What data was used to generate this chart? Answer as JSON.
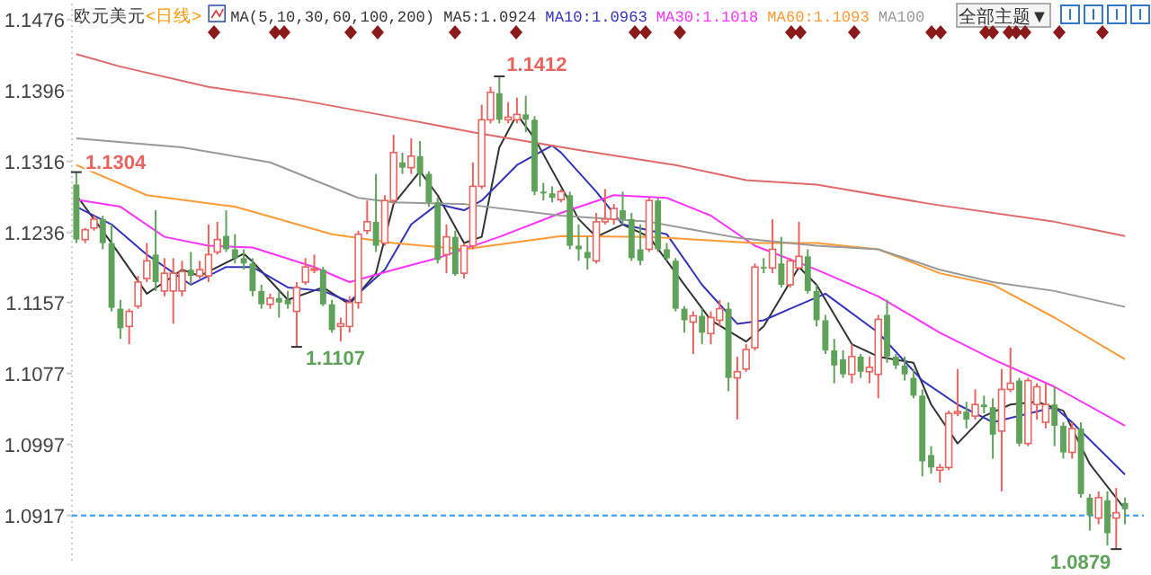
{
  "chart_data": {
    "type": "candlestick",
    "title": "欧元美元",
    "subtitle": "<日线>",
    "legend_title": "MA(5,10,30,60,100,200)",
    "legend": "top",
    "categories": [
      null,
      null,
      null,
      null,
      null,
      null,
      null,
      null,
      null,
      null,
      null,
      null,
      null,
      null,
      null,
      null,
      null,
      null,
      null,
      null,
      null,
      null,
      null,
      null,
      null,
      null,
      null,
      null,
      null,
      null,
      null,
      null,
      null,
      null,
      null,
      null,
      null,
      null,
      null,
      null,
      null,
      null,
      null,
      null,
      null,
      null,
      null,
      null,
      null,
      null,
      null,
      null,
      null,
      null,
      null,
      null,
      null,
      null,
      null,
      null,
      null,
      null,
      null,
      null,
      null,
      null,
      null,
      null,
      null,
      null,
      null,
      null,
      null,
      null,
      null,
      null,
      null,
      null,
      null,
      null,
      null,
      null,
      null,
      null,
      null,
      null,
      null,
      null,
      null,
      null,
      null,
      null,
      null,
      null,
      null,
      null,
      null,
      null,
      null,
      null,
      null,
      null,
      null,
      null,
      null,
      null,
      null,
      null,
      null,
      null,
      null,
      null,
      null,
      null,
      null,
      null,
      null,
      null,
      null,
      null
    ],
    "colors": [
      "#5fa25a",
      "#e8645f",
      "#e8645f",
      "#5fa25a",
      "#5fa25a",
      "#5fa25a",
      "#e8645f",
      "#e8645f",
      "#e8645f",
      "#5fa25a",
      "#e8645f",
      "#e8645f",
      "#e8645f",
      "#5fa25a",
      "#e8645f",
      "#e8645f",
      "#e8645f",
      "#5fa25a",
      "#5fa25a",
      "#5fa25a",
      "#5fa25a",
      "#5fa25a",
      "#e8645f",
      "#5fa25a",
      "#5fa25a",
      "#e8645f",
      "#e8645f",
      "#e8645f",
      "#5fa25a",
      "#5fa25a",
      "#e8645f",
      "#e8645f",
      "#e8645f",
      "#e8645f",
      "#5fa25a",
      "#e8645f",
      "#e8645f",
      "#5fa25a",
      "#e8645f",
      "#5fa25a",
      "#5fa25a",
      "#5fa25a",
      "#e8645f",
      "#5fa25a",
      "#e8645f",
      "#e8645f",
      "#e8645f",
      "#e8645f",
      "#5fa25a",
      "#e8645f",
      "#e8645f",
      "#5fa25a",
      "#5fa25a",
      "#5fa25a",
      "#5fa25a",
      "#e8645f",
      "#5fa25a",
      "#5fa25a",
      "#5fa25a",
      "#e8645f",
      "#e8645f",
      "#e8645f",
      "#5fa25a",
      "#5fa25a",
      "#5fa25a",
      "#e8645f",
      "#5fa25a",
      "#5fa25a",
      "#5fa25a",
      "#5fa25a",
      "#e8645f",
      "#5fa25a",
      "#e8645f",
      "#e8645f",
      "#5fa25a",
      "#e8645f",
      "#e8645f",
      "#e8645f",
      "#5fa25a",
      "#e8645f",
      "#5fa25a",
      "#e8645f",
      "#e8645f",
      "#5fa25a",
      "#5fa25a",
      "#5fa25a",
      "#5fa25a",
      "#5fa25a",
      "#e8645f",
      "#5fa25a",
      "#e8645f",
      "#e8645f",
      "#5fa25a",
      "#5fa25a",
      "#5fa25a",
      "#5fa25a",
      "#5fa25a",
      "#5fa25a",
      "#e8645f",
      "#e8645f",
      "#e8645f",
      "#5fa25a",
      "#e8645f",
      "#5fa25a",
      "#5fa25a",
      "#e8645f",
      "#e8645f",
      "#5fa25a",
      "#e8645f",
      "#e8645f",
      "#e8645f",
      "#5fa25a",
      "#5fa25a",
      "#e8645f",
      "#5fa25a",
      "#5fa25a",
      "#e8645f",
      "#5fa25a",
      "#e8645f",
      "#5fa25a"
    ],
    "ohlc": [
      [
        1.129,
        1.1304,
        1.1224,
        1.1228
      ],
      [
        1.1228,
        1.1241,
        1.1224,
        1.1239
      ],
      [
        1.1241,
        1.1255,
        1.1238,
        1.1251
      ],
      [
        1.1251,
        1.1255,
        1.1217,
        1.1224
      ],
      [
        1.1224,
        1.1245,
        1.1147,
        1.1151
      ],
      [
        1.115,
        1.116,
        1.1116,
        1.1128
      ],
      [
        1.113,
        1.115,
        1.111,
        1.1147
      ],
      [
        1.1153,
        1.1187,
        1.115,
        1.118
      ],
      [
        1.1184,
        1.1224,
        1.118,
        1.1204
      ],
      [
        1.1211,
        1.1261,
        1.117,
        1.118
      ],
      [
        1.117,
        1.1207,
        1.1164,
        1.119
      ],
      [
        1.117,
        1.1207,
        1.1133,
        1.119
      ],
      [
        1.117,
        1.1204,
        1.1164,
        1.1192
      ],
      [
        1.1194,
        1.1214,
        1.1177,
        1.1187
      ],
      [
        1.1187,
        1.1204,
        1.1184,
        1.1194
      ],
      [
        1.1187,
        1.1245,
        1.118,
        1.1211
      ],
      [
        1.1214,
        1.1248,
        1.1211,
        1.1228
      ],
      [
        1.1232,
        1.1261,
        1.1214,
        1.1217
      ],
      [
        1.1217,
        1.1234,
        1.1201,
        1.1207
      ],
      [
        1.1207,
        1.1217,
        1.1194,
        1.1201
      ],
      [
        1.1201,
        1.1207,
        1.1164,
        1.117
      ],
      [
        1.117,
        1.1177,
        1.115,
        1.1155
      ],
      [
        1.1155,
        1.1167,
        1.115,
        1.1162
      ],
      [
        1.1162,
        1.117,
        1.114,
        1.1157
      ],
      [
        1.116,
        1.117,
        1.115,
        1.1155
      ],
      [
        1.1147,
        1.118,
        1.1107,
        1.1174
      ],
      [
        1.118,
        1.1207,
        1.1177,
        1.1197
      ],
      [
        1.1194,
        1.1211,
        1.119,
        1.1195
      ],
      [
        1.1194,
        1.1197,
        1.1153,
        1.1155
      ],
      [
        1.1155,
        1.116,
        1.1123,
        1.1126
      ],
      [
        1.113,
        1.114,
        1.1113,
        1.1133
      ],
      [
        1.113,
        1.1164,
        1.1123,
        1.1157
      ],
      [
        1.1157,
        1.1238,
        1.115,
        1.1234
      ],
      [
        1.1238,
        1.1272,
        1.1234,
        1.1248
      ],
      [
        1.1248,
        1.1302,
        1.1214,
        1.1221
      ],
      [
        1.1224,
        1.1278,
        1.1221,
        1.1272
      ],
      [
        1.1272,
        1.1346,
        1.1268,
        1.1326
      ],
      [
        1.1315,
        1.1326,
        1.1302,
        1.1309
      ],
      [
        1.1309,
        1.1342,
        1.1302,
        1.1322
      ],
      [
        1.1322,
        1.1339,
        1.1288,
        1.1302
      ],
      [
        1.1302,
        1.1305,
        1.1265,
        1.127
      ],
      [
        1.127,
        1.1275,
        1.1201,
        1.1205
      ],
      [
        1.1211,
        1.1245,
        1.119,
        1.1231
      ],
      [
        1.1231,
        1.1238,
        1.1187,
        1.1189
      ],
      [
        1.119,
        1.1224,
        1.1184,
        1.1221
      ],
      [
        1.1221,
        1.1315,
        1.1217,
        1.1288
      ],
      [
        1.1288,
        1.138,
        1.1285,
        1.1363
      ],
      [
        1.1363,
        1.14,
        1.1359,
        1.1394
      ],
      [
        1.1393,
        1.1412,
        1.1359,
        1.1363
      ],
      [
        1.1363,
        1.1383,
        1.1359,
        1.1366
      ],
      [
        1.1363,
        1.1388,
        1.1359,
        1.1369
      ],
      [
        1.1369,
        1.139,
        1.1349,
        1.1363
      ],
      [
        1.1363,
        1.1367,
        1.1278,
        1.1282
      ],
      [
        1.1282,
        1.1292,
        1.1272,
        1.128
      ],
      [
        1.128,
        1.1288,
        1.127,
        1.1275
      ],
      [
        1.1273,
        1.1285,
        1.127,
        1.1282
      ],
      [
        1.1278,
        1.1282,
        1.1217,
        1.1221
      ],
      [
        1.1221,
        1.1245,
        1.1204,
        1.1217
      ],
      [
        1.1214,
        1.1231,
        1.1194,
        1.1207
      ],
      [
        1.1204,
        1.1258,
        1.1201,
        1.1248
      ],
      [
        1.1248,
        1.1285,
        1.1245,
        1.1251
      ],
      [
        1.1251,
        1.1268,
        1.1245,
        1.1263
      ],
      [
        1.1261,
        1.1282,
        1.1245,
        1.1251
      ],
      [
        1.1251,
        1.1258,
        1.1204,
        1.1207
      ],
      [
        1.1217,
        1.1245,
        1.1199,
        1.1204
      ],
      [
        1.1217,
        1.1275,
        1.1214,
        1.1272
      ],
      [
        1.1272,
        1.1275,
        1.1214,
        1.1217
      ],
      [
        1.1217,
        1.1224,
        1.1204,
        1.1207
      ],
      [
        1.1204,
        1.1207,
        1.1147,
        1.115
      ],
      [
        1.115,
        1.1153,
        1.1123,
        1.1137
      ],
      [
        1.1135,
        1.1147,
        1.1099,
        1.1142
      ],
      [
        1.1142,
        1.115,
        1.111,
        1.1123
      ],
      [
        1.1122,
        1.1147,
        1.111,
        1.114
      ],
      [
        1.1137,
        1.116,
        1.113,
        1.115
      ],
      [
        1.115,
        1.1157,
        1.1057,
        1.1072
      ],
      [
        1.1072,
        1.1096,
        1.1025,
        1.1079
      ],
      [
        1.1082,
        1.111,
        1.1079,
        1.1104
      ],
      [
        1.1106,
        1.1201,
        1.1103,
        1.1197
      ],
      [
        1.1197,
        1.1207,
        1.119,
        1.1196
      ],
      [
        1.1196,
        1.1251,
        1.119,
        1.1217
      ],
      [
        1.1201,
        1.1231,
        1.1174,
        1.1177
      ],
      [
        1.1177,
        1.1207,
        1.1174,
        1.1204
      ],
      [
        1.1196,
        1.1248,
        1.1194,
        1.1209
      ],
      [
        1.1209,
        1.1217,
        1.1167,
        1.117
      ],
      [
        1.117,
        1.1177,
        1.113,
        1.1137
      ],
      [
        1.1137,
        1.1143,
        1.1099,
        1.1103
      ],
      [
        1.1103,
        1.1116,
        1.1066,
        1.1086
      ],
      [
        1.1093,
        1.1103,
        1.1072,
        1.1076
      ],
      [
        1.1076,
        1.111,
        1.1066,
        1.1096
      ],
      [
        1.1096,
        1.1099,
        1.1072,
        1.1079
      ],
      [
        1.1079,
        1.1096,
        1.1066,
        1.1084
      ],
      [
        1.1076,
        1.1143,
        1.1049,
        1.1138
      ],
      [
        1.1143,
        1.116,
        1.1089,
        1.1096
      ],
      [
        1.1096,
        1.1099,
        1.1082,
        1.1086
      ],
      [
        1.1086,
        1.1096,
        1.1069,
        1.1076
      ],
      [
        1.1072,
        1.1082,
        1.1049,
        1.1052
      ],
      [
        1.1052,
        1.1059,
        1.0961,
        1.0978
      ],
      [
        1.0985,
        1.0995,
        1.0964,
        1.0971
      ],
      [
        1.0968,
        1.0975,
        1.0954,
        1.0971
      ],
      [
        1.0971,
        1.1035,
        1.0968,
        1.1032
      ],
      [
        1.1032,
        1.1082,
        1.1029,
        1.1034
      ],
      [
        1.1034,
        1.1045,
        1.1015,
        1.1025
      ],
      [
        1.1029,
        1.1059,
        1.1025,
        1.1042
      ],
      [
        1.1042,
        1.1052,
        1.1032,
        1.1039
      ],
      [
        1.1039,
        1.1049,
        1.0981,
        1.1008
      ],
      [
        1.1012,
        1.1082,
        1.0944,
        1.1059
      ],
      [
        1.1059,
        1.1106,
        1.1056,
        1.1066
      ],
      [
        1.1069,
        1.1072,
        1.0995,
        1.0998
      ],
      [
        1.0998,
        1.1072,
        1.0995,
        1.1069
      ],
      [
        1.1042,
        1.1066,
        1.1025,
        1.1062
      ],
      [
        1.1022,
        1.1066,
        1.1015,
        1.1042
      ],
      [
        1.1042,
        1.1062,
        1.0995,
        1.1018
      ],
      [
        1.1018,
        1.1022,
        1.0981,
        1.0988
      ],
      [
        1.0988,
        1.1022,
        1.0981,
        1.1015
      ],
      [
        1.1015,
        1.1022,
        1.0937,
        1.0941
      ],
      [
        1.0937,
        1.0941,
        1.09,
        1.0917
      ],
      [
        1.0914,
        1.0944,
        1.0907,
        1.0937
      ],
      [
        1.0934,
        1.0944,
        1.0883,
        1.0897
      ],
      [
        1.0914,
        1.0948,
        1.0879,
        1.092
      ],
      [
        1.0931,
        1.0937,
        1.0907,
        1.0924
      ]
    ],
    "series": [
      {
        "type": "line",
        "name": "MA5:1.0924",
        "color": "#333333",
        "values": [
          1.1278,
          null,
          null,
          null,
          1.1224,
          null,
          null,
          null,
          1.1167,
          null,
          1.118,
          null,
          1.1194,
          null,
          1.1187,
          null,
          null,
          null,
          null,
          1.1212,
          1.1203,
          null,
          null,
          null,
          1.116,
          null,
          null,
          null,
          1.1174,
          null,
          null,
          1.1155,
          null,
          null,
          1.119,
          null,
          1.1268,
          null,
          null,
          1.1305,
          null,
          1.1278,
          null,
          null,
          1.1224,
          null,
          1.1231,
          null,
          1.1332,
          null,
          1.1369,
          null,
          1.1342,
          null,
          null,
          1.1288,
          null,
          1.1251,
          null,
          1.1231,
          null,
          null,
          1.1245,
          null,
          null,
          1.1231,
          null,
          null,
          null,
          1.1177,
          null,
          null,
          1.1137,
          null,
          null,
          null,
          1.1113,
          null,
          1.113,
          null,
          null,
          null,
          1.1197,
          null,
          1.1177,
          null,
          null,
          null,
          1.111,
          null,
          null,
          1.1096,
          null,
          null,
          null,
          1.1089,
          null,
          1.1042,
          null,
          null,
          1.0998,
          null,
          null,
          1.1029,
          null,
          null,
          1.1042,
          null,
          null,
          1.1045,
          null,
          null,
          1.1035,
          null,
          null,
          1.0975,
          null,
          null,
          null,
          1.0924
        ]
      },
      {
        "type": "line",
        "name": "MA10:1.0963",
        "color": "#3333bb",
        "values": [
          1.1265,
          null,
          null,
          null,
          1.1245,
          null,
          null,
          null,
          1.1211,
          null,
          null,
          null,
          null,
          1.1177,
          null,
          null,
          null,
          1.1197,
          null,
          null,
          1.1197,
          null,
          null,
          null,
          1.1174,
          null,
          null,
          null,
          1.117,
          null,
          null,
          1.1158,
          null,
          null,
          null,
          1.1194,
          null,
          null,
          1.1245,
          null,
          null,
          1.1268,
          null,
          null,
          1.1261,
          null,
          1.1272,
          null,
          null,
          null,
          1.1312,
          null,
          null,
          null,
          1.1334,
          1.1326,
          null,
          null,
          null,
          1.1282,
          null,
          null,
          1.1245,
          null,
          null,
          null,
          null,
          1.1234,
          null,
          null,
          null,
          1.1177,
          null,
          null,
          null,
          1.1133,
          null,
          null,
          1.1137,
          null,
          null,
          1.115,
          null,
          null,
          null,
          1.1167,
          null,
          null,
          null,
          null,
          null,
          1.1123,
          null,
          null,
          null,
          null,
          1.1069,
          null,
          null,
          null,
          1.1042,
          null,
          null,
          null,
          1.1022,
          null,
          null,
          null,
          null,
          null,
          null,
          1.1039,
          null,
          1.1022,
          null,
          null,
          null,
          null,
          null,
          1.0963
        ]
      },
      {
        "type": "line",
        "name": "MA30:1.1018",
        "color": "#ff33ff",
        "values": [
          1.1273,
          null,
          null,
          null,
          null,
          1.1265,
          null,
          null,
          null,
          null,
          1.1231,
          null,
          null,
          null,
          null,
          1.1221,
          null,
          null,
          null,
          null,
          1.1219,
          null,
          null,
          null,
          null,
          null,
          null,
          1.1197,
          null,
          null,
          null,
          1.118,
          null,
          null,
          null,
          null,
          1.1194,
          null,
          null,
          null,
          null,
          1.1207,
          null,
          null,
          null,
          null,
          null,
          null,
          1.1231,
          null,
          null,
          null,
          null,
          null,
          null,
          1.1258,
          null,
          null,
          null,
          null,
          null,
          1.1278,
          null,
          null,
          null,
          null,
          null,
          1.1275,
          null,
          null,
          null,
          null,
          1.1255,
          null,
          null,
          null,
          null,
          1.1221,
          null,
          null,
          null,
          null,
          null,
          null,
          1.1194,
          null,
          null,
          null,
          null,
          null,
          null,
          1.1164,
          null,
          null,
          null,
          null,
          null,
          null,
          1.1123,
          null,
          null,
          null,
          null,
          null,
          1.1093,
          null,
          null,
          null,
          null,
          null,
          null,
          1.1062,
          null,
          null,
          null,
          null,
          null,
          null,
          null,
          1.1018
        ]
      },
      {
        "type": "line",
        "name": "MA60:1.1093",
        "color": "#ff9933",
        "values": [
          1.1312,
          null,
          null,
          null,
          null,
          null,
          null,
          null,
          1.1278,
          null,
          null,
          null,
          null,
          null,
          null,
          null,
          null,
          null,
          1.1265,
          null,
          null,
          null,
          null,
          null,
          null,
          null,
          null,
          null,
          null,
          1.1234,
          null,
          null,
          null,
          null,
          null,
          null,
          1.1224,
          null,
          null,
          null,
          null,
          null,
          null,
          null,
          1.1217,
          null,
          null,
          null,
          null,
          null,
          null,
          null,
          null,
          null,
          null,
          1.1232,
          null,
          null,
          null,
          null,
          null,
          null,
          null,
          null,
          null,
          1.1231,
          null,
          null,
          null,
          null,
          null,
          null,
          null,
          null,
          null,
          null,
          null,
          1.1224,
          null,
          null,
          null,
          null,
          null,
          null,
          1.1224,
          null,
          null,
          null,
          null,
          null,
          null,
          1.1217,
          null,
          null,
          null,
          null,
          null,
          null,
          1.119,
          null,
          null,
          null,
          null,
          null,
          1.1177,
          null,
          null,
          null,
          null,
          null,
          null,
          1.114,
          null,
          null,
          null,
          null,
          null,
          null,
          null,
          1.1093
        ]
      },
      {
        "type": "line",
        "name": "MA100",
        "color": "#999999",
        "values": [
          1.1342,
          null,
          null,
          null,
          null,
          null,
          null,
          null,
          null,
          null,
          null,
          null,
          1.1332,
          null,
          null,
          null,
          null,
          null,
          null,
          null,
          null,
          null,
          1.1315,
          null,
          null,
          null,
          null,
          null,
          null,
          null,
          null,
          null,
          1.1275,
          null,
          null,
          null,
          1.127,
          null,
          null,
          null,
          null,
          null,
          null,
          null,
          1.1268,
          null,
          null,
          null,
          null,
          null,
          null,
          null,
          null,
          null,
          null,
          1.1255,
          null,
          null,
          null,
          null,
          null,
          null,
          null,
          null,
          null,
          1.1248,
          null,
          null,
          null,
          null,
          null,
          null,
          null,
          null,
          null,
          1.123,
          null,
          null,
          null,
          null,
          null,
          null,
          null,
          null,
          1.1221,
          null,
          null,
          null,
          null,
          null,
          null,
          1.1217,
          null,
          null,
          null,
          null,
          null,
          null,
          1.1194,
          null,
          null,
          null,
          null,
          null,
          1.118,
          null,
          null,
          null,
          null,
          null,
          null,
          1.117,
          null,
          null,
          null,
          null,
          null,
          null,
          null,
          1.1152
        ]
      },
      {
        "type": "line",
        "color": "#e06a6a",
        "values": [
          1.1437,
          null,
          null,
          null,
          null,
          1.1423,
          null,
          null,
          null,
          null,
          null,
          null,
          null,
          null,
          null,
          1.14,
          null,
          null,
          null,
          null,
          null,
          null,
          null,
          null,
          null,
          1.1386,
          null,
          null,
          null,
          null,
          null,
          null,
          null,
          null,
          null,
          null,
          1.1366,
          null,
          null,
          null,
          null,
          null,
          null,
          null,
          null,
          1.1349,
          null,
          null,
          null,
          null,
          null,
          null,
          null,
          null,
          null,
          null,
          null,
          1.1329,
          null,
          null,
          null,
          null,
          null,
          null,
          null,
          null,
          null,
          null,
          1.1312,
          null,
          null,
          null,
          null,
          null,
          null,
          null,
          1.1295,
          null,
          null,
          null,
          null,
          null,
          null,
          null,
          1.129,
          null,
          null,
          null,
          null,
          null,
          null,
          null,
          null,
          null,
          null,
          null,
          null,
          1.1268,
          null,
          null,
          null,
          null,
          null,
          null,
          null,
          null,
          null,
          null,
          null,
          null,
          null,
          1.1248,
          null,
          null,
          null,
          null,
          null,
          null,
          null,
          1.1232
        ]
      }
    ],
    "ylim": [
      1.0866,
      1.1494
    ],
    "yticks": [
      1.0917,
      1.0997,
      1.1077,
      1.1157,
      1.1236,
      1.1316,
      1.1396,
      1.1476
    ],
    "ref_lines": [
      {
        "axis": "y",
        "value": 1.0917,
        "color": "#3399ff",
        "line_style": "dashed"
      }
    ],
    "annotations": [
      "全部主题▼",
      {
        "text": "1.1304",
        "y": 1.1304
      },
      {
        "text": "1.1107",
        "y": 1.1107
      },
      "1.1412",
      "1.0879"
    ]
  }
}
